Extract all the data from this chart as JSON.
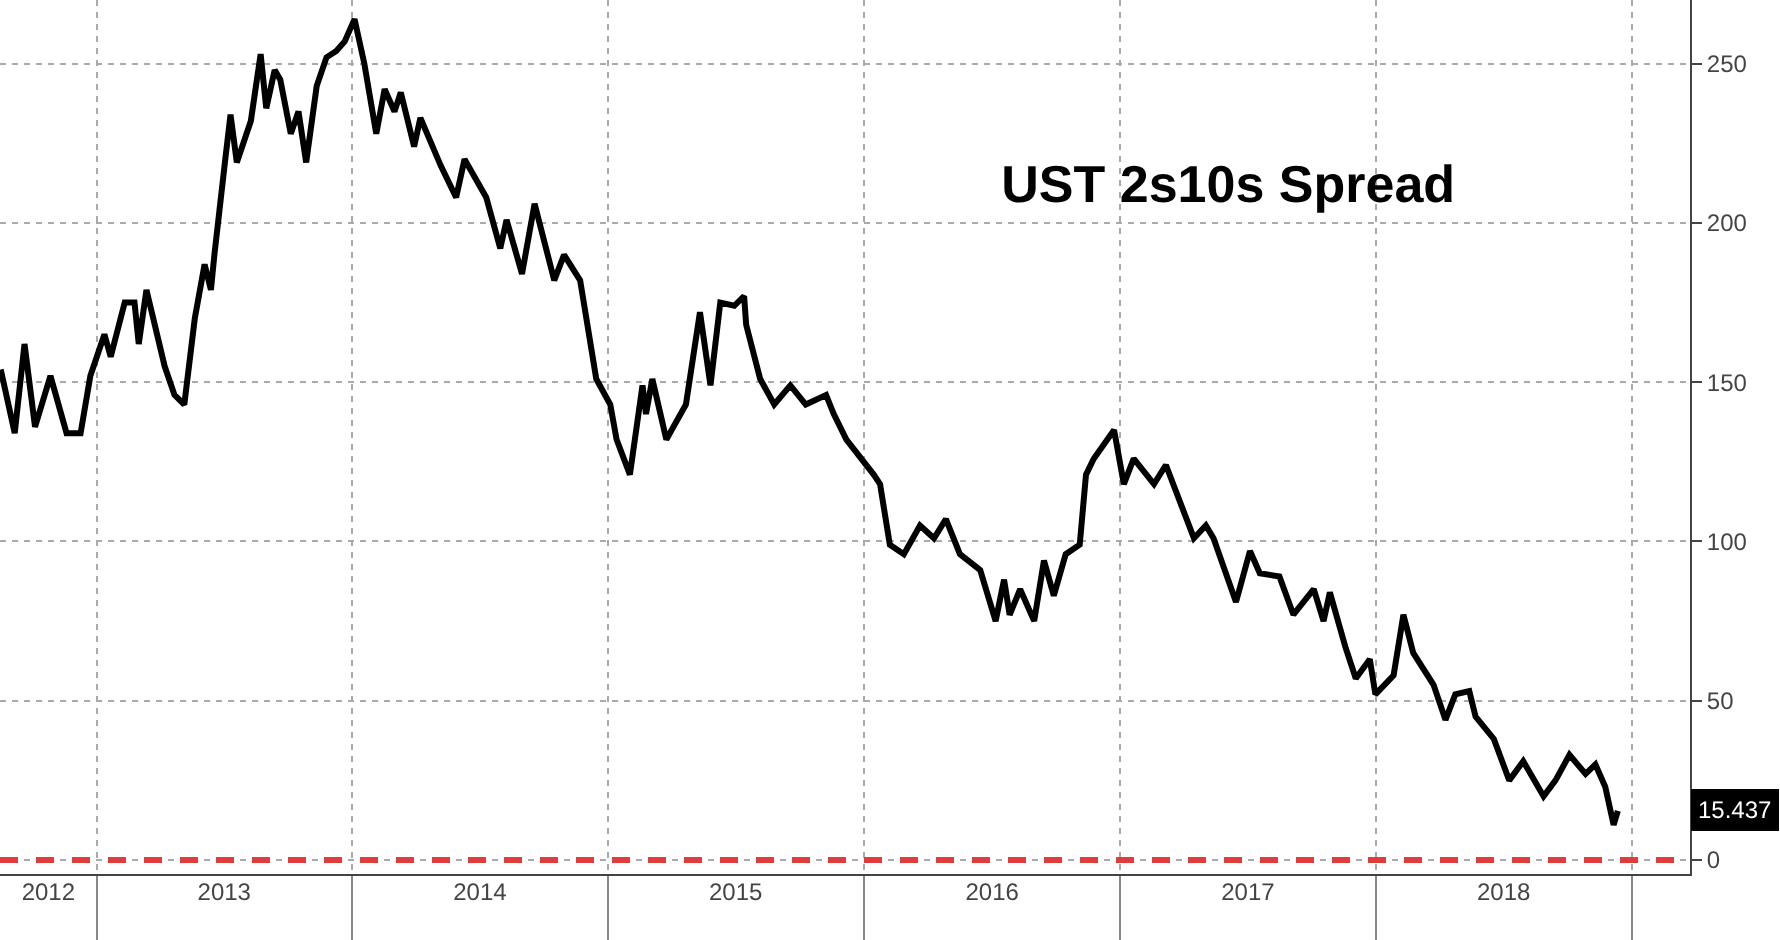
{
  "chart_data": {
    "type": "line",
    "title": "UST 2s10s Spread",
    "x": [
      "2012-08-17",
      "2012-09-06",
      "2012-09-20",
      "2012-10-05",
      "2012-10-27",
      "2012-11-19",
      "2012-12-09",
      "2012-12-23",
      "2013-01-12",
      "2013-01-21",
      "2013-02-10",
      "2013-02-24",
      "2013-03-02",
      "2013-03-13",
      "2013-04-08",
      "2013-04-22",
      "2013-05-06",
      "2013-05-21",
      "2013-06-04",
      "2013-06-13",
      "2013-06-18",
      "2013-07-03",
      "2013-07-11",
      "2013-07-20",
      "2013-08-09",
      "2013-08-23",
      "2013-08-31",
      "2013-09-12",
      "2013-09-20",
      "2013-10-05",
      "2013-10-16",
      "2013-10-27",
      "2013-11-11",
      "2013-11-25",
      "2013-12-09",
      "2013-12-21",
      "2014-01-04",
      "2014-01-18",
      "2014-02-04",
      "2014-02-16",
      "2014-03-02",
      "2014-03-11",
      "2014-03-30",
      "2014-04-08",
      "2014-05-07",
      "2014-05-29",
      "2014-06-10",
      "2014-07-11",
      "2014-07-31",
      "2014-08-09",
      "2014-08-31",
      "2014-09-18",
      "2014-10-16",
      "2014-10-30",
      "2014-11-22",
      "2014-12-15",
      "2015-01-04",
      "2015-01-13",
      "2015-02-01",
      "2015-02-19",
      "2015-02-24",
      "2015-03-05",
      "2015-03-25",
      "2015-04-22",
      "2015-05-12",
      "2015-05-27",
      "2015-06-10",
      "2015-06-30",
      "2015-07-14",
      "2015-07-17",
      "2015-08-06",
      "2015-08-26",
      "2015-09-18",
      "2015-10-10",
      "2015-11-08",
      "2015-11-19",
      "2015-12-07",
      "2016-01-15",
      "2016-01-24",
      "2016-02-07",
      "2016-02-27",
      "2016-03-21",
      "2016-04-10",
      "2016-04-27",
      "2016-05-17",
      "2016-06-15",
      "2016-07-07",
      "2016-07-19",
      "2016-07-27",
      "2016-08-11",
      "2016-08-31",
      "2016-09-14",
      "2016-09-28",
      "2016-10-15",
      "2016-11-04",
      "2016-11-13",
      "2016-11-24",
      "2016-12-23",
      "2017-01-06",
      "2017-01-20",
      "2017-02-18",
      "2017-03-07",
      "2017-04-16",
      "2017-05-03",
      "2017-05-14",
      "2017-06-15",
      "2017-07-05",
      "2017-07-19",
      "2017-08-16",
      "2017-09-05",
      "2017-10-04",
      "2017-10-18",
      "2017-10-27",
      "2017-11-18",
      "2017-12-03",
      "2017-12-23",
      "2017-12-31",
      "2018-01-26",
      "2018-02-09",
      "2018-02-23",
      "2018-03-24",
      "2018-04-10",
      "2018-04-24",
      "2018-05-14",
      "2018-05-23",
      "2018-06-18",
      "2018-07-10",
      "2018-07-30",
      "2018-08-28",
      "2018-09-14",
      "2018-10-04",
      "2018-10-27",
      "2018-11-10",
      "2018-11-24",
      "2018-12-06",
      "2018-12-12"
    ],
    "series": [
      {
        "color": "#000000",
        "values": [
          154,
          134,
          162,
          136,
          152,
          134,
          134,
          152,
          165,
          158,
          175,
          175,
          162,
          179,
          155,
          146,
          143,
          170,
          187,
          179,
          190,
          219,
          234,
          219,
          232,
          253,
          236,
          248,
          245,
          228,
          235,
          219,
          243,
          252,
          254,
          257,
          264,
          250,
          228,
          242,
          235,
          241,
          224,
          233,
          218,
          208,
          220,
          208,
          192,
          201,
          184,
          206,
          182,
          190,
          182,
          151,
          143,
          132,
          121,
          149,
          140,
          151,
          132,
          143,
          172,
          149,
          175,
          174,
          177,
          168,
          151,
          143,
          149,
          143,
          146,
          140,
          132,
          121,
          118,
          99,
          96,
          105,
          101,
          107,
          96,
          91,
          75,
          88,
          77,
          85,
          75,
          94,
          83,
          96,
          99,
          121,
          126,
          135,
          118,
          126,
          118,
          124,
          101,
          105,
          101,
          81,
          97,
          90,
          89,
          77,
          85,
          75,
          84,
          67,
          57,
          63,
          52,
          58,
          77,
          65,
          55,
          44,
          52,
          53,
          45,
          38,
          25,
          31,
          20,
          25,
          33,
          27,
          30,
          23,
          11,
          15.437
        ]
      }
    ],
    "xlim": [
      "2012-08-16",
      "2019-03-25"
    ],
    "xticks": [
      {
        "value": "2013-01-01",
        "label": null
      },
      {
        "value": "2014-01-01",
        "label": null
      },
      {
        "value": "2015-01-01",
        "label": null
      },
      {
        "value": "2016-01-01",
        "label": null
      },
      {
        "value": "2017-01-01",
        "label": null
      },
      {
        "value": "2018-01-01",
        "label": null
      },
      {
        "value": "2019-01-01",
        "label": null
      },
      {
        "value": "2012-10-24",
        "label": "2012"
      },
      {
        "value": "2013-07-02",
        "label": "2013"
      },
      {
        "value": "2014-07-02",
        "label": "2014"
      },
      {
        "value": "2015-07-02",
        "label": "2015"
      },
      {
        "value": "2016-07-02",
        "label": "2016"
      },
      {
        "value": "2017-07-02",
        "label": "2017"
      },
      {
        "value": "2018-07-02",
        "label": "2018"
      }
    ],
    "ylim": [
      -4.4,
      270
    ],
    "yticks": [
      0,
      50,
      100,
      150,
      200,
      250
    ],
    "grid": true,
    "ref_lines": [
      {
        "axis": "y",
        "value": 0,
        "color": "#e03c3c",
        "line_style": "dashed"
      }
    ],
    "annotations": [
      {
        "text": "15.437",
        "y": 15.437
      }
    ]
  }
}
